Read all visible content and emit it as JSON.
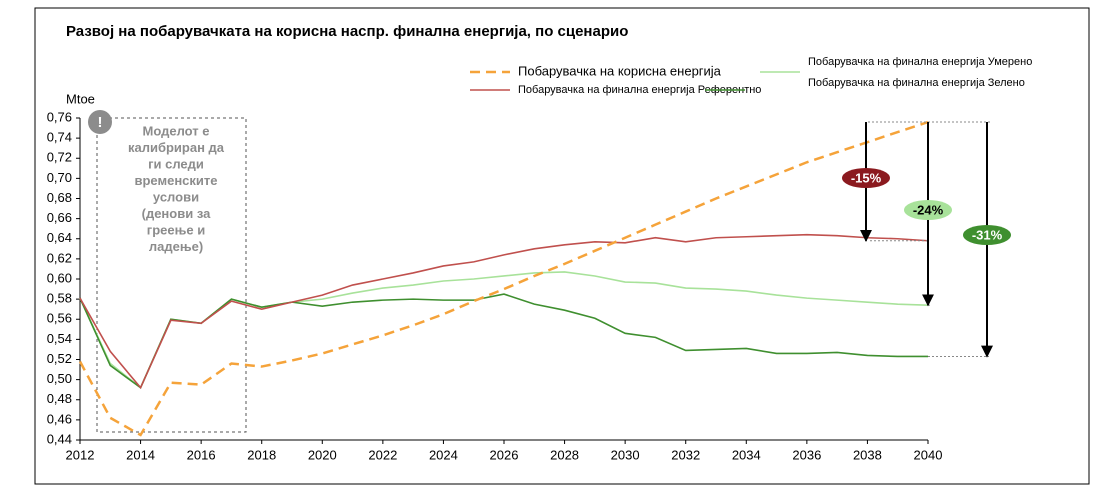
{
  "chart_data": {
    "type": "line",
    "title": "Развој на побарувачката на корисна наспр. финална енергија, по сценарио",
    "y_label": "Mtoe",
    "x": [
      2012,
      2013,
      2014,
      2015,
      2016,
      2017,
      2018,
      2019,
      2020,
      2021,
      2022,
      2023,
      2024,
      2025,
      2026,
      2027,
      2028,
      2029,
      2030,
      2031,
      2032,
      2033,
      2034,
      2035,
      2036,
      2037,
      2038,
      2039,
      2040
    ],
    "xlim": [
      2012,
      2040
    ],
    "xticks": [
      2012,
      2014,
      2016,
      2018,
      2020,
      2022,
      2024,
      2026,
      2028,
      2030,
      2032,
      2034,
      2036,
      2038,
      2040
    ],
    "ylim": [
      0.44,
      0.76
    ],
    "yticks": [
      {
        "value": 0.44,
        "label": "0,44"
      },
      {
        "value": 0.46,
        "label": "0,46"
      },
      {
        "value": 0.48,
        "label": "0,48"
      },
      {
        "value": 0.5,
        "label": "0,50"
      },
      {
        "value": 0.52,
        "label": "0,52"
      },
      {
        "value": 0.54,
        "label": "0,54"
      },
      {
        "value": 0.56,
        "label": "0,56"
      },
      {
        "value": 0.58,
        "label": "0,58"
      },
      {
        "value": 0.6,
        "label": "0,60"
      },
      {
        "value": 0.62,
        "label": "0,62"
      },
      {
        "value": 0.64,
        "label": "0,64"
      },
      {
        "value": 0.66,
        "label": "0,66"
      },
      {
        "value": 0.68,
        "label": "0,68"
      },
      {
        "value": 0.7,
        "label": "0,70"
      },
      {
        "value": 0.72,
        "label": "0,72"
      },
      {
        "value": 0.74,
        "label": "0,74"
      },
      {
        "value": 0.76,
        "label": "0,76"
      }
    ],
    "series": [
      {
        "name": "Побарувачка на корисна енергија",
        "color": "#f5a33a",
        "dashed": true,
        "values": [
          0.518,
          0.462,
          0.445,
          0.497,
          0.495,
          0.516,
          0.513,
          0.519,
          0.526,
          0.535,
          0.544,
          0.554,
          0.565,
          0.578,
          0.59,
          0.603,
          0.615,
          0.628,
          0.641,
          0.654,
          0.667,
          0.68,
          0.692,
          0.704,
          0.716,
          0.726,
          0.736,
          0.746,
          0.756
        ]
      },
      {
        "name": "Побарувачка на финална енергија Референтно",
        "color": "#c0504d",
        "values": [
          0.581,
          0.528,
          0.492,
          0.559,
          0.556,
          0.578,
          0.57,
          0.577,
          0.584,
          0.594,
          0.6,
          0.606,
          0.613,
          0.617,
          0.624,
          0.63,
          0.634,
          0.637,
          0.636,
          0.641,
          0.637,
          0.641,
          0.642,
          0.643,
          0.644,
          0.643,
          0.641,
          0.64,
          0.638
        ]
      },
      {
        "name": "Побарувачка на финална енергија Умерено",
        "color": "#a8e29a",
        "values": [
          0.581,
          0.516,
          0.492,
          0.56,
          0.556,
          0.58,
          0.572,
          0.577,
          0.58,
          0.586,
          0.591,
          0.594,
          0.598,
          0.6,
          0.603,
          0.606,
          0.607,
          0.603,
          0.597,
          0.596,
          0.591,
          0.59,
          0.588,
          0.584,
          0.581,
          0.579,
          0.577,
          0.575,
          0.574
        ]
      },
      {
        "name": "Побарувачка на финална енергија Зелено",
        "color": "#3f8f2f",
        "values": [
          0.581,
          0.514,
          0.492,
          0.56,
          0.556,
          0.58,
          0.572,
          0.577,
          0.573,
          0.577,
          0.579,
          0.58,
          0.579,
          0.579,
          0.585,
          0.575,
          0.569,
          0.561,
          0.546,
          0.542,
          0.529,
          0.53,
          0.531,
          0.526,
          0.526,
          0.527,
          0.524,
          0.523,
          0.523
        ]
      }
    ],
    "reductions": [
      {
        "text": "-15%",
        "color": "#8b1a1f",
        "text_color": "#ffffff"
      },
      {
        "text": "-24%",
        "color": "#a8e29a",
        "text_color": "#000000"
      },
      {
        "text": "-31%",
        "color": "#3f8f2f",
        "text_color": "#ffffff"
      }
    ],
    "note_icon": "!",
    "note_lines": [
      "Моделот е",
      "калибриран да",
      "ги следи",
      "временските",
      "услови",
      "(денови за",
      "греење и",
      "ладење)"
    ]
  }
}
